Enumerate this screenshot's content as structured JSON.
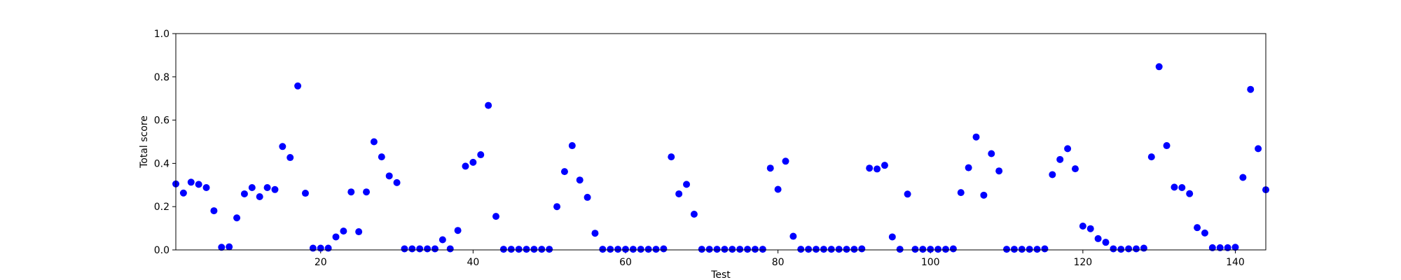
{
  "chart_data": {
    "type": "scatter",
    "title": "",
    "xlabel": "Test",
    "ylabel": "Total score",
    "xlim": [
      1,
      144
    ],
    "ylim": [
      0.0,
      1.0
    ],
    "xticks": [
      20,
      40,
      60,
      80,
      100,
      120,
      140
    ],
    "xtick_labels": [
      "20",
      "40",
      "60",
      "80",
      "100",
      "120",
      "140"
    ],
    "yticks": [
      0.0,
      0.2,
      0.4,
      0.6,
      0.8,
      1.0
    ],
    "ytick_labels": [
      "0.0",
      "0.2",
      "0.4",
      "0.6",
      "0.8",
      "1.0"
    ],
    "grid": false,
    "legend": "none",
    "marker_color": "#0000ff",
    "series": [
      {
        "x": [
          1,
          2,
          3,
          4,
          5,
          6,
          7,
          8,
          9,
          10,
          11,
          12,
          13,
          14,
          15,
          16,
          17,
          18,
          19,
          20,
          21,
          22,
          23,
          24,
          25,
          26,
          27,
          28,
          29,
          30,
          31,
          32,
          33,
          34,
          35,
          36,
          37,
          38,
          39,
          40,
          41,
          42,
          43,
          44,
          45,
          46,
          47,
          48,
          49,
          50,
          51,
          52,
          53,
          54,
          55,
          56,
          57,
          58,
          59,
          60,
          61,
          62,
          63,
          64,
          65,
          66,
          67,
          68,
          69,
          70,
          71,
          72,
          73,
          74,
          75,
          76,
          77,
          78,
          79,
          80,
          81,
          82,
          83,
          84,
          85,
          86,
          87,
          88,
          89,
          90,
          91,
          92,
          93,
          94,
          95,
          96,
          97,
          98,
          99,
          100,
          101,
          102,
          103,
          104,
          105,
          106,
          107,
          108,
          109,
          110,
          111,
          112,
          113,
          114,
          115,
          116,
          117,
          118,
          119,
          120,
          121,
          122,
          123,
          124,
          125,
          126,
          127,
          128,
          129,
          130,
          131,
          132,
          133,
          134,
          135,
          136,
          137,
          138,
          139,
          140,
          141,
          142,
          143,
          144
        ],
        "y": [
          0.305,
          0.263,
          0.313,
          0.303,
          0.288,
          0.181,
          0.012,
          0.014,
          0.148,
          0.259,
          0.288,
          0.246,
          0.288,
          0.279,
          0.478,
          0.427,
          0.758,
          0.262,
          0.008,
          0.008,
          0.008,
          0.06,
          0.087,
          0.268,
          0.084,
          0.268,
          0.5,
          0.43,
          0.342,
          0.311,
          0.005,
          0.005,
          0.005,
          0.005,
          0.005,
          0.047,
          0.005,
          0.09,
          0.387,
          0.405,
          0.44,
          0.668,
          0.155,
          0.003,
          0.003,
          0.003,
          0.003,
          0.003,
          0.003,
          0.003,
          0.2,
          0.362,
          0.482,
          0.323,
          0.243,
          0.077,
          0.003,
          0.003,
          0.003,
          0.003,
          0.003,
          0.003,
          0.003,
          0.003,
          0.005,
          0.43,
          0.259,
          0.303,
          0.165,
          0.003,
          0.003,
          0.003,
          0.003,
          0.003,
          0.003,
          0.003,
          0.003,
          0.003,
          0.378,
          0.28,
          0.41,
          0.063,
          0.003,
          0.003,
          0.003,
          0.003,
          0.003,
          0.003,
          0.003,
          0.003,
          0.005,
          0.378,
          0.374,
          0.391,
          0.06,
          0.003,
          0.258,
          0.003,
          0.003,
          0.003,
          0.003,
          0.003,
          0.005,
          0.265,
          0.38,
          0.522,
          0.253,
          0.445,
          0.365,
          0.003,
          0.003,
          0.003,
          0.003,
          0.003,
          0.005,
          0.348,
          0.418,
          0.468,
          0.375,
          0.11,
          0.098,
          0.052,
          0.035,
          0.005,
          0.003,
          0.005,
          0.005,
          0.008,
          0.43,
          0.847,
          0.482,
          0.29,
          0.288,
          0.26,
          0.103,
          0.078,
          0.01,
          0.01,
          0.01,
          0.012,
          0.335,
          0.742,
          0.468,
          0.278
        ]
      }
    ]
  }
}
